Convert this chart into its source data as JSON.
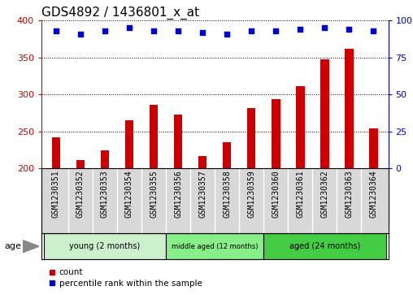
{
  "title": "GDS4892 / 1436801_x_at",
  "samples": [
    "GSM1230351",
    "GSM1230352",
    "GSM1230353",
    "GSM1230354",
    "GSM1230355",
    "GSM1230356",
    "GSM1230357",
    "GSM1230358",
    "GSM1230359",
    "GSM1230360",
    "GSM1230361",
    "GSM1230362",
    "GSM1230363",
    "GSM1230364"
  ],
  "counts": [
    242,
    211,
    224,
    265,
    286,
    273,
    216,
    235,
    281,
    294,
    311,
    348,
    362,
    254
  ],
  "percentiles": [
    93,
    91,
    93,
    95,
    93,
    93,
    92,
    91,
    93,
    93,
    94,
    95,
    94,
    93
  ],
  "ylim_left": [
    200,
    400
  ],
  "ylim_right": [
    0,
    100
  ],
  "yticks_left": [
    200,
    250,
    300,
    350,
    400
  ],
  "yticks_right": [
    0,
    25,
    50,
    75,
    100
  ],
  "bar_color": "#cc0000",
  "dot_color": "#0000cc",
  "group_colors": [
    "#ccf0cc",
    "#88ee88",
    "#44cc44"
  ],
  "groups": [
    {
      "label": "young (2 months)",
      "start": 0,
      "end": 5
    },
    {
      "label": "middle aged (12 months)",
      "start": 5,
      "end": 9
    },
    {
      "label": "aged (24 months)",
      "start": 9,
      "end": 14
    }
  ],
  "legend_count_label": "count",
  "legend_pct_label": "percentile rank within the sample",
  "age_label": "age",
  "background_color": "#ffffff",
  "plot_bg_color": "#ffffff",
  "xlabel_bg_color": "#d8d8d8",
  "grid_color": "#000000",
  "title_fontsize": 11,
  "tick_fontsize": 7,
  "bar_width": 0.35
}
